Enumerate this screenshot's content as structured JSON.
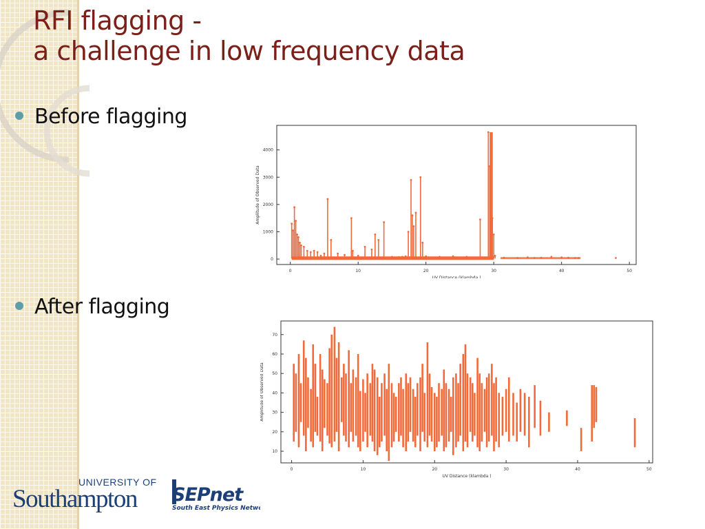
{
  "slide": {
    "title_line1": "RFI flagging  -",
    "title_line2": "a challenge in low frequency data",
    "bullets": [
      "Before flagging",
      "After flagging"
    ]
  },
  "logos": {
    "university_of": "UNIVERSITY OF",
    "southampton": "Southampton",
    "sepnet": "SEPnet",
    "sepnet_subtitle": "South East Physics Network"
  },
  "colors": {
    "title": "#7b2018",
    "bullet_dot": "#5f9ea9",
    "data": "#f26a3a",
    "accent_navy": "#1c3f78"
  },
  "chart_data": [
    {
      "type": "scatter",
      "title": "",
      "xlabel": "UV Distance (klambda )",
      "ylabel": "Amplitude of Observed Data",
      "xlim": [
        -2,
        51
      ],
      "ylim": [
        -200,
        4900
      ],
      "xticks": [
        0,
        10,
        20,
        30,
        40,
        50
      ],
      "yticks": [
        0,
        1000,
        2000,
        3000,
        4000
      ],
      "series": [
        {
          "color": "#f26a3a",
          "x": [
            0.2,
            0.4,
            0.6,
            0.8,
            1.0,
            1.2,
            1.4,
            1.6,
            2.0,
            2.5,
            3.0,
            3.5,
            4.0,
            4.5,
            5.0,
            5.5,
            6.0,
            7.0,
            8.0,
            9.0,
            9.2,
            10.0,
            11.0,
            12.0,
            12.5,
            13.0,
            13.8,
            15.0,
            16.0,
            16.5,
            17.0,
            17.4,
            17.8,
            18.0,
            18.2,
            18.5,
            19.2,
            19.5,
            20.0,
            22.0,
            24.0,
            26.0,
            28.0,
            28.3,
            29.2,
            29.4,
            29.6,
            29.8,
            30.0,
            30.2,
            31.5,
            33.5,
            35.0,
            36.0,
            37.0,
            38.5,
            40.0,
            41.0,
            42.0,
            42.5,
            48.0
          ],
          "y": [
            1300,
            1050,
            1900,
            1400,
            900,
            800,
            600,
            500,
            450,
            300,
            250,
            300,
            250,
            120,
            200,
            2200,
            700,
            200,
            150,
            1500,
            300,
            120,
            450,
            350,
            900,
            700,
            1350,
            80,
            70,
            80,
            100,
            1000,
            2900,
            1600,
            1200,
            1700,
            3000,
            600,
            100,
            80,
            100,
            80,
            1450,
            60,
            4650,
            3400,
            2600,
            1500,
            900,
            120,
            50,
            40,
            60,
            40,
            50,
            80,
            60,
            50,
            40,
            40,
            40
          ]
        }
      ]
    },
    {
      "type": "scatter",
      "title": "",
      "xlabel": "UV Distance (klambda )",
      "ylabel": "Amplitude of Observed Data",
      "xlim": [
        -1.5,
        50.5
      ],
      "ylim": [
        4,
        77
      ],
      "xticks": [
        0,
        10,
        20,
        30,
        40,
        50
      ],
      "yticks": [
        10,
        20,
        30,
        40,
        50,
        60,
        70
      ],
      "segments_x": [
        0.3,
        0.6,
        1.0,
        1.3,
        1.7,
        2.0,
        2.3,
        2.7,
        3.0,
        3.3,
        3.6,
        4.0,
        4.3,
        4.6,
        5.0,
        5.3,
        5.6,
        6.0,
        6.3,
        6.6,
        7.0,
        7.3,
        7.6,
        8.0,
        8.3,
        8.6,
        9.0,
        9.3,
        9.6,
        10.0,
        10.3,
        10.6,
        11.0,
        11.3,
        11.6,
        12.0,
        12.3,
        12.6,
        13.0,
        13.3,
        13.6,
        14.0,
        14.3,
        14.6,
        15.0,
        15.3,
        15.6,
        16.0,
        16.3,
        16.6,
        17.0,
        17.3,
        17.6,
        18.0,
        18.3,
        18.6,
        19.0,
        19.3,
        19.6,
        20.0,
        20.3,
        20.6,
        21.0,
        21.3,
        21.6,
        22.0,
        22.3,
        22.6,
        23.0,
        23.3,
        23.6,
        24.0,
        24.3,
        24.6,
        25.0,
        25.3,
        25.6,
        26.0,
        26.3,
        26.6,
        27.0,
        27.3,
        27.6,
        28.0,
        28.3,
        28.6,
        29.0,
        29.5,
        30.0,
        30.4,
        31.0,
        31.5,
        32.0,
        32.6,
        33.2,
        34.0,
        34.8,
        36.0,
        38.5,
        40.5,
        42.0,
        42.3,
        42.6,
        48.0
      ],
      "segments_ylo": [
        15,
        20,
        12,
        25,
        18,
        10,
        22,
        15,
        12,
        20,
        18,
        15,
        10,
        22,
        18,
        14,
        12,
        15,
        20,
        10,
        25,
        18,
        15,
        12,
        20,
        15,
        18,
        12,
        10,
        15,
        20,
        12,
        18,
        15,
        10,
        8,
        12,
        15,
        18,
        10,
        5,
        12,
        15,
        20,
        15,
        18,
        12,
        10,
        15,
        20,
        15,
        12,
        18,
        10,
        20,
        15,
        12,
        18,
        15,
        10,
        12,
        15,
        18,
        10,
        12,
        15,
        20,
        8,
        12,
        15,
        18,
        10,
        15,
        12,
        20,
        15,
        18,
        12,
        10,
        15,
        20,
        12,
        15,
        18,
        10,
        15,
        12,
        18,
        20,
        15,
        18,
        15,
        20,
        18,
        12,
        22,
        18,
        20,
        23,
        10,
        15,
        22,
        25,
        12
      ],
      "segments_yhi": [
        55,
        50,
        60,
        45,
        67,
        58,
        48,
        42,
        65,
        55,
        38,
        60,
        52,
        47,
        45,
        63,
        70,
        74,
        58,
        66,
        48,
        55,
        50,
        62,
        45,
        52,
        48,
        60,
        41,
        47,
        40,
        50,
        45,
        55,
        52,
        48,
        38,
        45,
        50,
        42,
        55,
        45,
        40,
        38,
        45,
        48,
        42,
        50,
        45,
        48,
        42,
        38,
        45,
        48,
        55,
        40,
        66,
        50,
        43,
        40,
        38,
        45,
        42,
        52,
        45,
        42,
        38,
        48,
        50,
        45,
        55,
        60,
        65,
        50,
        48,
        45,
        40,
        58,
        50,
        45,
        42,
        48,
        50,
        55,
        45,
        48,
        40,
        38,
        42,
        48,
        40,
        35,
        42,
        40,
        38,
        44,
        36,
        30,
        31,
        22,
        44,
        44,
        43,
        27
      ]
    }
  ]
}
